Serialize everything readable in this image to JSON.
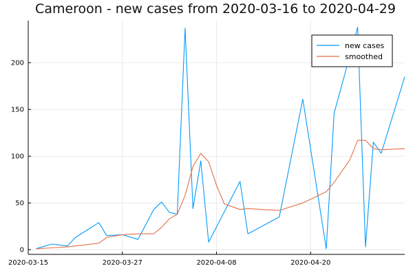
{
  "chart_data": {
    "type": "line",
    "title": "Cameroon - new cases from 2020-03-16 to 2020-04-29",
    "xlabel": "",
    "ylabel": "",
    "x_type": "date",
    "xlim": [
      "2020-03-15",
      "2020-05-02"
    ],
    "ylim": [
      -5,
      245
    ],
    "x_ticks": [
      "2020-03-15",
      "2020-03-27",
      "2020-04-08",
      "2020-04-20"
    ],
    "y_ticks": [
      0,
      50,
      100,
      150,
      200
    ],
    "grid": true,
    "legend_position": "top-right",
    "series": [
      {
        "name": "new cases",
        "color": "#009AF9",
        "points": [
          [
            "2020-03-16",
            1
          ],
          [
            "2020-03-18",
            6
          ],
          [
            "2020-03-20",
            4
          ],
          [
            "2020-03-21",
            13
          ],
          [
            "2020-03-24",
            29
          ],
          [
            "2020-03-25",
            15
          ],
          [
            "2020-03-27",
            16
          ],
          [
            "2020-03-29",
            11
          ],
          [
            "2020-03-31",
            43
          ],
          [
            "2020-04-01",
            51
          ],
          [
            "2020-04-02",
            40
          ],
          [
            "2020-04-03",
            38
          ],
          [
            "2020-04-04",
            237
          ],
          [
            "2020-04-05",
            44
          ],
          [
            "2020-04-06",
            95
          ],
          [
            "2020-04-07",
            8
          ],
          [
            "2020-04-11",
            73
          ],
          [
            "2020-04-12",
            17
          ],
          [
            "2020-04-16",
            35
          ],
          [
            "2020-04-19",
            161
          ],
          [
            "2020-04-22",
            1
          ],
          [
            "2020-04-23",
            146
          ],
          [
            "2020-04-26",
            238
          ],
          [
            "2020-04-27",
            3
          ],
          [
            "2020-04-28",
            115
          ],
          [
            "2020-04-29",
            103
          ],
          [
            "2020-05-02",
            185
          ]
        ]
      },
      {
        "name": "smoothed",
        "color": "#E26F46",
        "points": [
          [
            "2020-03-16",
            1
          ],
          [
            "2020-03-18",
            2
          ],
          [
            "2020-03-20",
            3
          ],
          [
            "2020-03-22",
            5
          ],
          [
            "2020-03-24",
            7
          ],
          [
            "2020-03-25",
            13
          ],
          [
            "2020-03-27",
            16
          ],
          [
            "2020-03-29",
            17
          ],
          [
            "2020-03-31",
            17
          ],
          [
            "2020-04-01",
            24
          ],
          [
            "2020-04-02",
            33
          ],
          [
            "2020-04-03",
            38
          ],
          [
            "2020-04-04",
            58
          ],
          [
            "2020-04-05",
            89
          ],
          [
            "2020-04-06",
            103
          ],
          [
            "2020-04-07",
            94
          ],
          [
            "2020-04-08",
            69
          ],
          [
            "2020-04-09",
            49
          ],
          [
            "2020-04-11",
            43
          ],
          [
            "2020-04-12",
            44
          ],
          [
            "2020-04-16",
            42
          ],
          [
            "2020-04-19",
            50
          ],
          [
            "2020-04-22",
            62
          ],
          [
            "2020-04-23",
            72
          ],
          [
            "2020-04-25",
            96
          ],
          [
            "2020-04-26",
            117
          ],
          [
            "2020-04-27",
            117
          ],
          [
            "2020-04-28",
            108
          ],
          [
            "2020-04-29",
            107
          ],
          [
            "2020-05-02",
            108
          ]
        ]
      }
    ]
  }
}
